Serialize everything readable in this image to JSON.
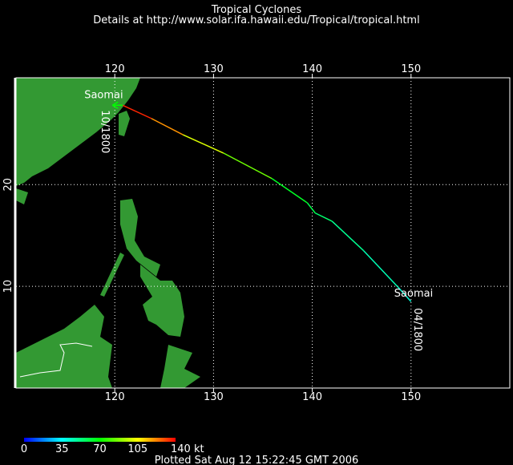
{
  "header": {
    "title": "Tropical Cyclones",
    "subtitle": "Details at http://www.solar.ifa.hawaii.edu/Tropical/tropical.html"
  },
  "map": {
    "xlim": [
      110,
      160
    ],
    "ylim": [
      0,
      30.5
    ],
    "xticks": [
      120,
      130,
      140,
      150
    ],
    "yticks": [
      10,
      20
    ],
    "grid": true,
    "land_color": "#339933"
  },
  "storm": {
    "name": "Saomai",
    "start_label": "04/1800",
    "end_label": "10/1800",
    "track": [
      {
        "lon": 150.0,
        "lat": 8.5,
        "wind": 40
      },
      {
        "lon": 148.7,
        "lat": 9.9,
        "wind": 45
      },
      {
        "lon": 145.2,
        "lat": 13.5,
        "wind": 50
      },
      {
        "lon": 142.0,
        "lat": 16.4,
        "wind": 55
      },
      {
        "lon": 140.3,
        "lat": 17.2,
        "wind": 60
      },
      {
        "lon": 139.5,
        "lat": 18.2,
        "wind": 65
      },
      {
        "lon": 135.9,
        "lat": 20.6,
        "wind": 85
      },
      {
        "lon": 131.0,
        "lat": 23.1,
        "wind": 100
      },
      {
        "lon": 126.9,
        "lat": 24.9,
        "wind": 120
      },
      {
        "lon": 123.7,
        "lat": 26.5,
        "wind": 135
      },
      {
        "lon": 120.8,
        "lat": 27.8,
        "wind": 140
      },
      {
        "lon": 120.0,
        "lat": 27.8,
        "wind": 70
      }
    ]
  },
  "colorbar": {
    "ticks": [
      0,
      35,
      70,
      105,
      {
        "value": 140,
        "label": "140 kt"
      }
    ],
    "colors": [
      "#0000ff",
      "#00ffff",
      "#00ff00",
      "#ffff00",
      "#ff0000"
    ]
  },
  "footer": "Plotted Sat Aug 12 15:22:45 GMT 2006"
}
